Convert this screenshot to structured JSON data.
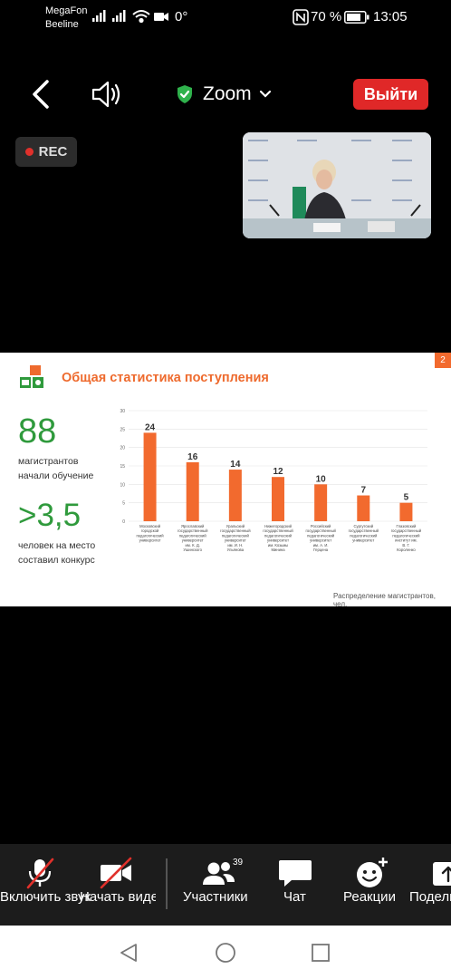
{
  "status_bar": {
    "carrier1": "MegaFon",
    "carrier2": "Beeline",
    "temperature": "0°",
    "battery": "70 %",
    "time": "13:05"
  },
  "top_bar": {
    "title": "Zoom",
    "leave_label": "Выйти"
  },
  "rec_label": "REC",
  "slide": {
    "number": "2",
    "title": "Общая статистика поступления",
    "stat1_value": "88",
    "stat1_caption_line1": "магистрантов",
    "stat1_caption_line2": "начали обучение",
    "stat2_value": ">3,5",
    "stat2_caption_line1": "человек на место",
    "stat2_caption_line2": "составил конкурс",
    "footnote": "Распределение магистрантов, чел."
  },
  "chart_data": {
    "type": "bar",
    "categories": [
      "Московский городской педагогический университет",
      "Ярославский государственный педагогический университет им. К. Д. Ушинского",
      "Уральский государственный педагогический университет им. И. Н. Ульянова",
      "Нижегородский государственный педагогический университет им. Козьмы Минина",
      "Российский государственный педагогический университет им. А. И. Герцена",
      "Сургутский государственный педагогический университет",
      "Глазовский государственный педагогический институт им. В. Г. Короленко"
    ],
    "values": [
      24,
      16,
      14,
      12,
      10,
      7,
      5
    ],
    "ylim": [
      0,
      30
    ],
    "yticks": [
      0,
      5,
      10,
      15,
      20,
      25,
      30
    ],
    "grid": true,
    "bar_color": "#f26a2e"
  },
  "toolbar": {
    "mic_label": "Включить звук",
    "video_label": "Начать видео",
    "participants_label": "Участники",
    "participants_count": "39",
    "chat_label": "Чат",
    "reactions_label": "Реакции",
    "share_label": "Поделиться"
  },
  "colors": {
    "leave_red": "#e02828",
    "shield_green": "#2fb24c",
    "slide_orange": "#ee6a2d",
    "slide_green": "#2f9a3c",
    "muted_red": "#e0302b"
  }
}
